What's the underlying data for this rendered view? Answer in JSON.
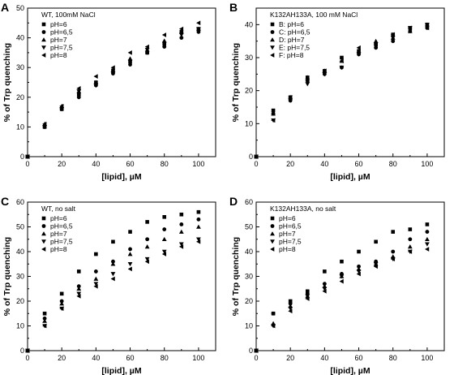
{
  "chart_data": [
    {
      "type": "scatter",
      "panel": "A",
      "title": "",
      "annotation": "WT, 100mM NaCl",
      "xlabel": "[lipid], µM",
      "ylabel": "% of Trp quenching",
      "xlim": [
        0,
        110
      ],
      "ylim": [
        0,
        50
      ],
      "xticks": [
        0,
        20,
        40,
        60,
        80,
        100
      ],
      "yticks": [
        0,
        10,
        20,
        30,
        40,
        50
      ],
      "grid": false,
      "legend_position": "top-left",
      "x": [
        0,
        10,
        20,
        30,
        40,
        50,
        60,
        70,
        80,
        90,
        100
      ],
      "series": [
        {
          "name": "pH=6",
          "marker": "square",
          "values": [
            0,
            10,
            16,
            21,
            25,
            29,
            32,
            35,
            38,
            42,
            43
          ]
        },
        {
          "name": "pH=6,5",
          "marker": "circle",
          "values": [
            0,
            10,
            16,
            20,
            24,
            28,
            31,
            35,
            37,
            40,
            42
          ]
        },
        {
          "name": "pH=7",
          "marker": "triangle-up",
          "values": [
            0,
            11,
            17,
            22,
            25,
            29,
            33,
            36,
            39,
            42,
            43
          ]
        },
        {
          "name": "pH=7,5",
          "marker": "triangle-down",
          "values": [
            0,
            10,
            16,
            22,
            24,
            28,
            32,
            36,
            38,
            41,
            43
          ]
        },
        {
          "name": "pH=8",
          "marker": "triangle-left",
          "values": [
            0,
            11,
            17,
            23,
            27,
            30,
            35,
            37,
            41,
            43,
            45
          ]
        }
      ]
    },
    {
      "type": "scatter",
      "panel": "B",
      "title": "",
      "annotation": "K132AH133A, 100 mM NaCl",
      "xlabel": "[lipid], µM",
      "ylabel": "% of Trp quenching",
      "xlim": [
        0,
        110
      ],
      "ylim": [
        0,
        45
      ],
      "xticks": [
        0,
        20,
        40,
        60,
        80,
        100
      ],
      "yticks": [
        0,
        10,
        20,
        30,
        40
      ],
      "grid": false,
      "legend_position": "top-left",
      "x": [
        0,
        10,
        20,
        30,
        40,
        50,
        60,
        70,
        80,
        90,
        100
      ],
      "series": [
        {
          "name": "B: pH=6",
          "marker": "square",
          "values": [
            0,
            14,
            18,
            24,
            26,
            30,
            32,
            34,
            37,
            39,
            40
          ]
        },
        {
          "name": "C: pH=6,5",
          "marker": "circle",
          "values": [
            0,
            13,
            17,
            23,
            25,
            27,
            31,
            33,
            35,
            38,
            39
          ]
        },
        {
          "name": "D: pH=7",
          "marker": "triangle-up",
          "values": [
            0,
            13,
            18,
            24,
            26,
            29,
            32,
            35,
            36,
            38,
            40
          ]
        },
        {
          "name": "E: pH=7,5",
          "marker": "triangle-down",
          "values": [
            0,
            11,
            17,
            22,
            25,
            27,
            31,
            34,
            36,
            39,
            40
          ]
        },
        {
          "name": "F: pH=8",
          "marker": "triangle-left",
          "values": [
            0,
            11,
            18,
            23,
            26,
            29,
            33,
            34,
            37,
            39,
            39
          ]
        }
      ]
    },
    {
      "type": "scatter",
      "panel": "C",
      "title": "",
      "annotation": "WT, no salt",
      "xlabel": "[lipid], µM",
      "ylabel": "% of Trp quenching",
      "xlim": [
        0,
        110
      ],
      "ylim": [
        0,
        60
      ],
      "xticks": [
        0,
        20,
        40,
        60,
        80,
        100
      ],
      "yticks": [
        0,
        10,
        20,
        30,
        40,
        50,
        60
      ],
      "grid": false,
      "legend_position": "top-left",
      "x": [
        0,
        10,
        20,
        30,
        40,
        50,
        60,
        70,
        80,
        90,
        100
      ],
      "series": [
        {
          "name": "pH=6",
          "marker": "square",
          "values": [
            0,
            15,
            23,
            32,
            39,
            44,
            48,
            52,
            54,
            55,
            56
          ]
        },
        {
          "name": "pH=6,5",
          "marker": "circle",
          "values": [
            0,
            13,
            20,
            26,
            32,
            36,
            41,
            45,
            49,
            51,
            53
          ]
        },
        {
          "name": "pH=7",
          "marker": "triangle-up",
          "values": [
            0,
            12,
            19,
            25,
            29,
            35,
            39,
            42,
            45,
            48,
            50
          ]
        },
        {
          "name": "pH=7,5",
          "marker": "triangle-down",
          "values": [
            0,
            10,
            17,
            23,
            27,
            31,
            35,
            37,
            40,
            43,
            45
          ]
        },
        {
          "name": "pH=8",
          "marker": "triangle-left",
          "values": [
            0,
            10,
            17,
            22,
            26,
            29,
            33,
            36,
            39,
            42,
            44
          ]
        }
      ]
    },
    {
      "type": "scatter",
      "panel": "D",
      "title": "",
      "annotation": "K132AH133A, no salt",
      "xlabel": "[lipid], µM",
      "ylabel": "% of Trp quenching",
      "xlim": [
        0,
        110
      ],
      "ylim": [
        0,
        60
      ],
      "xticks": [
        0,
        20,
        40,
        60,
        80,
        100
      ],
      "yticks": [
        0,
        10,
        20,
        30,
        40,
        50,
        60
      ],
      "grid": false,
      "legend_position": "top-left",
      "x": [
        0,
        10,
        20,
        30,
        40,
        50,
        60,
        70,
        80,
        90,
        100
      ],
      "series": [
        {
          "name": "pH=6",
          "marker": "square",
          "values": [
            0,
            15,
            20,
            24,
            32,
            36,
            40,
            44,
            48,
            49,
            51
          ]
        },
        {
          "name": "pH=6,5",
          "marker": "circle",
          "values": [
            0,
            15,
            19,
            23,
            27,
            31,
            34,
            36,
            40,
            45,
            48
          ]
        },
        {
          "name": "pH=7",
          "marker": "triangle-up",
          "values": [
            0,
            11,
            18,
            22,
            26,
            30,
            33,
            35,
            38,
            42,
            45
          ]
        },
        {
          "name": "pH=7,5",
          "marker": "triangle-down",
          "values": [
            0,
            10,
            17,
            22,
            25,
            30,
            32,
            35,
            37,
            40,
            43
          ]
        },
        {
          "name": "pH=8",
          "marker": "triangle-left",
          "values": [
            0,
            10,
            16,
            21,
            24,
            28,
            31,
            34,
            37,
            40,
            41
          ]
        }
      ]
    }
  ]
}
